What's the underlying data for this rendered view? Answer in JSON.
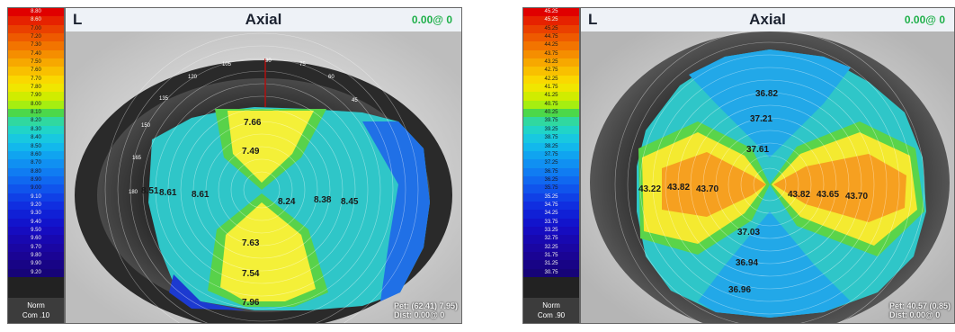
{
  "left_map": {
    "eye": "L",
    "title": "Axial",
    "readout": "0.00@ 0",
    "scale_values": [
      "8.80",
      "8.60",
      "7.00",
      "7.20",
      "7.30",
      "7.40",
      "7.50",
      "7.60",
      "7.70",
      "7.80",
      "7.90",
      "8.00",
      "8.10",
      "8.20",
      "8.30",
      "8.40",
      "8.50",
      "8.60",
      "8.70",
      "8.80",
      "8.90",
      "9.00",
      "9.10",
      "9.20",
      "9.30",
      "9.40",
      "9.50",
      "9.60",
      "9.70",
      "9.80",
      "9.90",
      "9.20"
    ],
    "scale_colors": [
      "#e00000",
      "#e62200",
      "#ea4000",
      "#ee5a00",
      "#f27400",
      "#f58e00",
      "#f7a800",
      "#f9c000",
      "#fad800",
      "#f0e600",
      "#d0ec00",
      "#a6ee10",
      "#4cd84a",
      "#30d8a0",
      "#20d4c8",
      "#18c8e0",
      "#12b8ec",
      "#10a4f0",
      "#1090f2",
      "#107cf2",
      "#1068f0",
      "#1054ec",
      "#1040e6",
      "#102ee0",
      "#1020d6",
      "#1214cc",
      "#160cc0",
      "#1808b0",
      "#1a06a2",
      "#1a0494",
      "#180486",
      "#160478"
    ],
    "scale_footer": [
      "Norm",
      "Com .10"
    ],
    "degree_labels": [
      "90",
      "75",
      "60",
      "45",
      "105",
      "120",
      "135",
      "150",
      "165",
      "180"
    ],
    "values": [
      "7.66",
      "7.49",
      "8.51",
      "8.61",
      "8.61",
      "8.24",
      "8.38",
      "8.45",
      "7.63",
      "7.54",
      "7.96"
    ],
    "info": [
      "Pet: (62.41) 7.95)",
      "Dist: 0.00@ 0"
    ]
  },
  "right_map": {
    "eye": "L",
    "title": "Axial",
    "readout": "0.00@ 0",
    "scale_values": [
      "45.25",
      "45.25",
      "45.25",
      "44.75",
      "44.25",
      "43.75",
      "43.25",
      "42.75",
      "42.25",
      "41.75",
      "41.25",
      "40.75",
      "40.25",
      "39.75",
      "39.25",
      "38.75",
      "38.25",
      "37.75",
      "37.25",
      "36.75",
      "36.25",
      "35.75",
      "35.25",
      "34.75",
      "34.25",
      "33.75",
      "33.25",
      "32.75",
      "32.25",
      "31.75",
      "31.25",
      "30.75"
    ],
    "scale_colors": [
      "#e00000",
      "#e62200",
      "#ea4000",
      "#ee5a00",
      "#f27400",
      "#f58e00",
      "#f7a800",
      "#f9c000",
      "#fad800",
      "#f0e600",
      "#d0ec00",
      "#a6ee10",
      "#4cd84a",
      "#30d8a0",
      "#20d4c8",
      "#18c8e0",
      "#12b8ec",
      "#10a4f0",
      "#1090f2",
      "#107cf2",
      "#1068f0",
      "#1054ec",
      "#1040e6",
      "#102ee0",
      "#1020d6",
      "#1214cc",
      "#160cc0",
      "#1808b0",
      "#1a06a2",
      "#1a0494",
      "#180486",
      "#160478"
    ],
    "scale_footer": [
      "Norm",
      "Com .90"
    ],
    "values": [
      "36.82",
      "37.21",
      "37.61",
      "43.22",
      "43.82",
      "43.70",
      "43.82",
      "43.65",
      "43.70",
      "37.03",
      "36.94",
      "36.96"
    ],
    "info": [
      "Pet: 40.57 (0.85)",
      "Dist: 0.00@ 0"
    ]
  }
}
